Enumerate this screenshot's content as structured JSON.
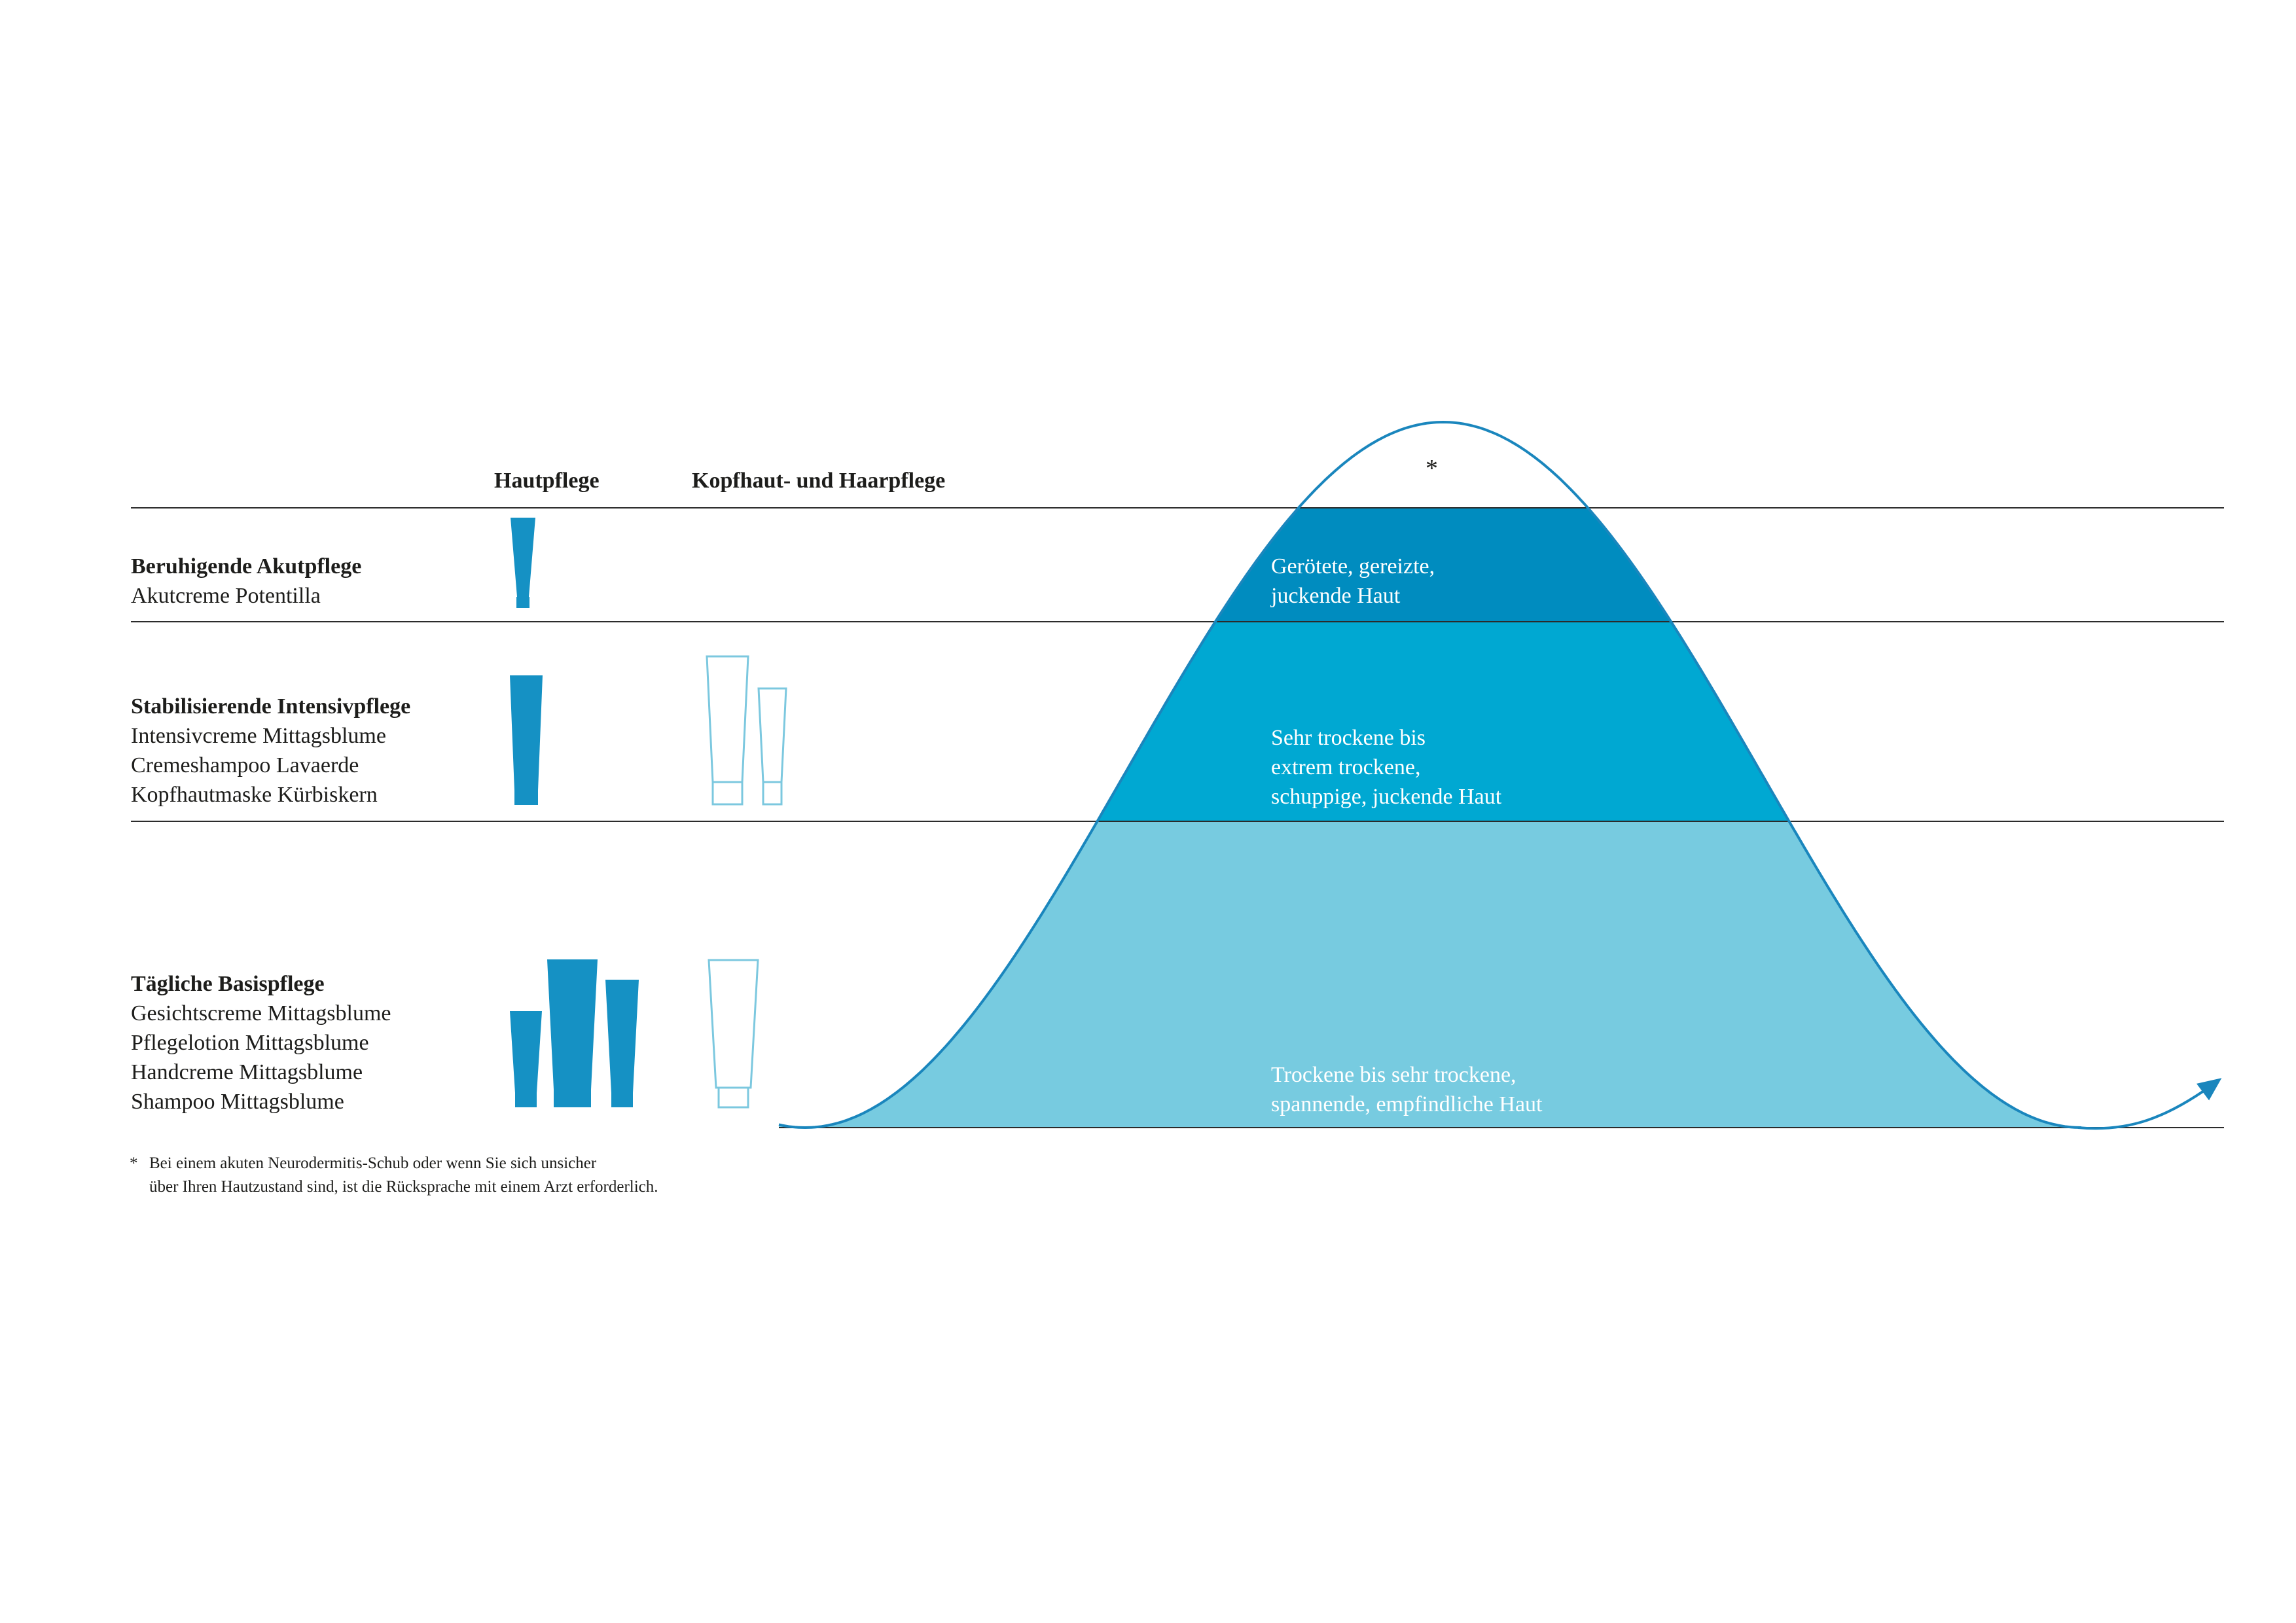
{
  "columns": {
    "skin_care": "Hautpflege",
    "scalp_hair_care": "Kopfhaut- und Haarpflege"
  },
  "tiers": [
    {
      "title": "Beruhigende Akutpflege",
      "products": [
        "Akutcreme Potentilla"
      ],
      "zone_text": [
        "Gerötete, gereizte,",
        "juckende Haut"
      ],
      "zone_color": "#008cbf",
      "tube_color": "#1591c4"
    },
    {
      "title": "Stabilisierende Intensivpflege",
      "products": [
        "Intensivcreme Mittagsblume",
        "Cremeshampoo Lavaerde",
        "Kopfhautmaske Kürbiskern"
      ],
      "zone_text": [
        "Sehr trockene bis",
        "extrem trockene,",
        "schuppige, juckende Haut"
      ],
      "zone_color": "#00a8d2",
      "tube_color": "#1591c4"
    },
    {
      "title": "Tägliche Basispflege",
      "products": [
        "Gesichtscreme Mittagsblume",
        "Pflegelotion Mittagsblume",
        "Handcreme Mittagsblume",
        "Shampoo Mittagsblume"
      ],
      "zone_text": [
        "Trockene bis sehr trockene,",
        "spannende, empfindliche Haut"
      ],
      "zone_color": "#77cbe0",
      "tube_color": "#1591c4"
    }
  ],
  "peak_marker": "*",
  "footnote": {
    "symbol": "*",
    "lines": [
      "Bei einem akuten Neurodermitis-Schub oder wenn Sie sich unsicher",
      "über Ihren Hautzustand sind, ist die Rücksprache mit einem Arzt erforderlich."
    ]
  },
  "colors": {
    "curve": "#1a86bd",
    "rule": "#2b2b2b",
    "outline_tube": "#7cc8df",
    "text": "#1d1d1b"
  }
}
